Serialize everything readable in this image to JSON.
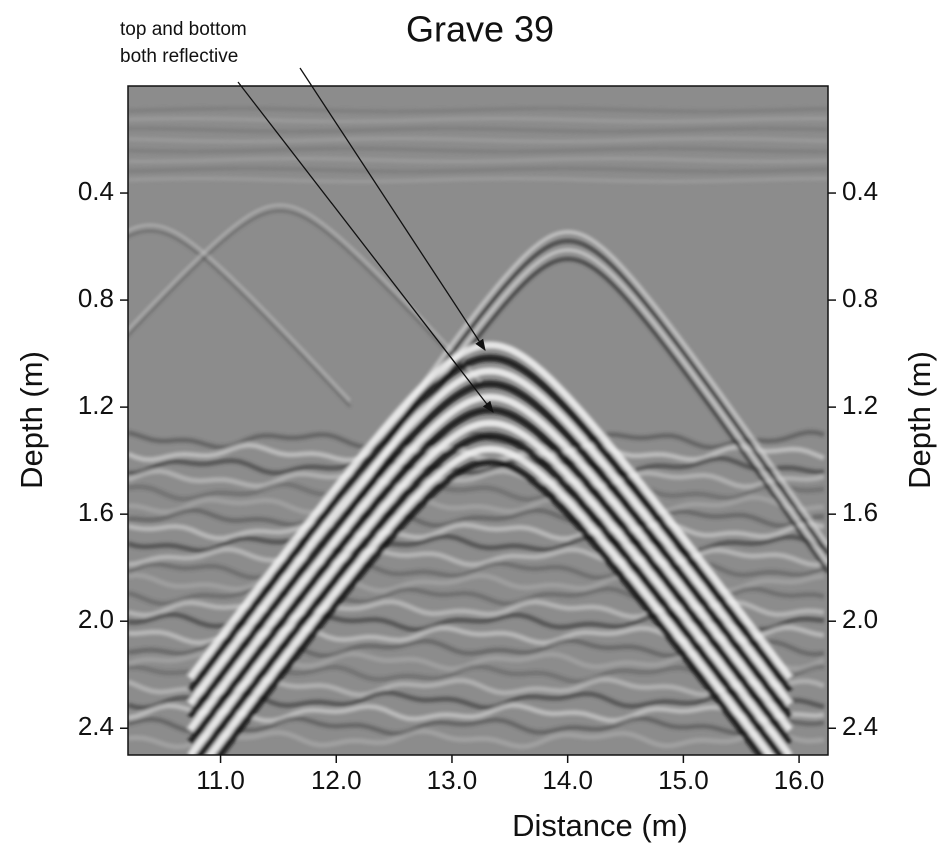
{
  "chart_data": {
    "type": "radargram",
    "title": "Grave 39",
    "x_label": "Distance (m)",
    "y_label": "Depth (m)",
    "annotation": [
      "top and bottom",
      "both reflective"
    ],
    "xlim": [
      10.2,
      16.25
    ],
    "ylim": [
      0,
      2.5
    ],
    "y_inverted": true,
    "xticks": [
      {
        "value": 11,
        "label": "11.0"
      },
      {
        "value": 12,
        "label": "12.0"
      },
      {
        "value": 13,
        "label": "13.0"
      },
      {
        "value": 14,
        "label": "14.0"
      },
      {
        "value": 15,
        "label": "15.0"
      },
      {
        "value": 16,
        "label": "16.0"
      }
    ],
    "yticks": [
      0.4,
      0.8,
      1.2,
      1.6,
      {
        "value": 2,
        "label": "2.0"
      },
      2.4
    ],
    "y_right_axis": true
  }
}
